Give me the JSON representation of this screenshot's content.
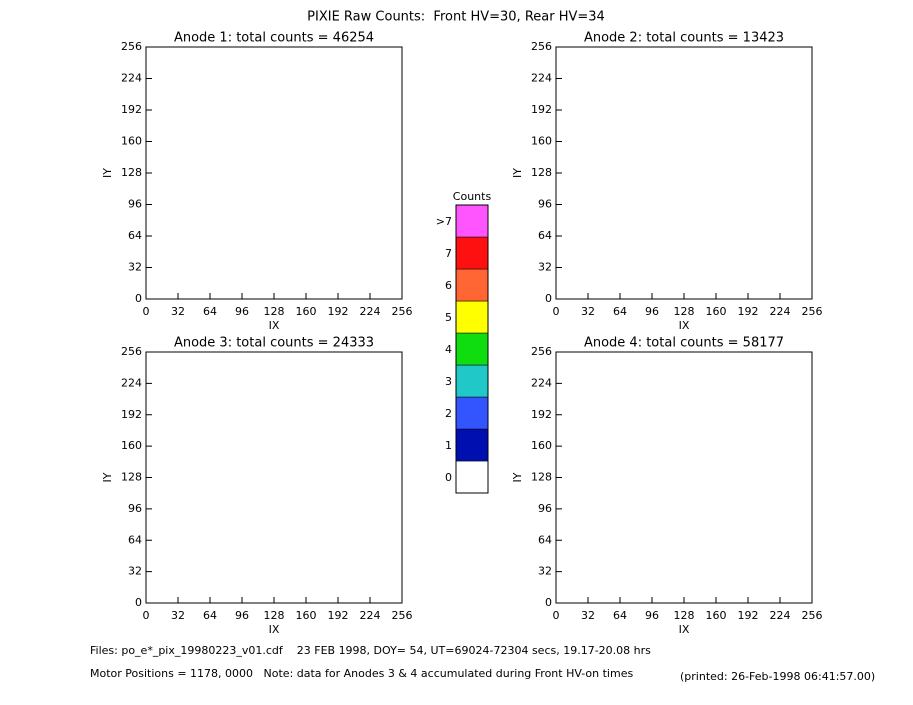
{
  "title": "PIXIE Raw Counts:  Front HV=30, Rear HV=34",
  "chart_data": [
    {
      "type": "heatmap",
      "title": "Anode 1: total counts = 46254",
      "x_label": "IX",
      "y_label": "IY",
      "xlim": [
        0,
        256
      ],
      "ylim": [
        0,
        256
      ],
      "xticks": [
        0,
        32,
        64,
        96,
        128,
        160,
        192,
        224,
        256
      ],
      "yticks": [
        0,
        32,
        64,
        96,
        128,
        160,
        192,
        224,
        256
      ]
    },
    {
      "type": "heatmap",
      "title": "Anode 2: total counts = 13423",
      "x_label": "IX",
      "y_label": "IY",
      "xlim": [
        0,
        256
      ],
      "ylim": [
        0,
        256
      ],
      "xticks": [
        0,
        32,
        64,
        96,
        128,
        160,
        192,
        224,
        256
      ],
      "yticks": [
        0,
        32,
        64,
        96,
        128,
        160,
        192,
        224,
        256
      ]
    },
    {
      "type": "heatmap",
      "title": "Anode 3: total counts = 24333",
      "x_label": "IX",
      "y_label": "IY",
      "xlim": [
        0,
        256
      ],
      "ylim": [
        0,
        256
      ],
      "xticks": [
        0,
        32,
        64,
        96,
        128,
        160,
        192,
        224,
        256
      ],
      "yticks": [
        0,
        32,
        64,
        96,
        128,
        160,
        192,
        224,
        256
      ]
    },
    {
      "type": "heatmap",
      "title": "Anode 4: total counts = 58177",
      "x_label": "IX",
      "y_label": "IY",
      "xlim": [
        0,
        256
      ],
      "ylim": [
        0,
        256
      ],
      "xticks": [
        0,
        32,
        64,
        96,
        128,
        160,
        192,
        224,
        256
      ],
      "yticks": [
        0,
        32,
        64,
        96,
        128,
        160,
        192,
        224,
        256
      ]
    }
  ],
  "colorbar": {
    "title": "Counts",
    "levels": [
      {
        "value": 0,
        "color": "#ffffff"
      },
      {
        "value": 1,
        "color": "#0010b0"
      },
      {
        "value": 2,
        "color": "#3355ff"
      },
      {
        "value": 3,
        "color": "#20c8c8"
      },
      {
        "value": 4,
        "color": "#10dd10"
      },
      {
        "value": 5,
        "color": "#ffff00"
      },
      {
        "value": 6,
        "color": "#ff6633"
      },
      {
        "value": 7,
        "color": "#ff1010"
      },
      {
        "label": ">7",
        "color": "#ff55ff"
      }
    ]
  },
  "footer": {
    "files": "Files: po_e*_pix_19980223_v01.cdf    23 FEB 1998, DOY= 54, UT=69024-72304 secs, 19.17-20.08 hrs",
    "motor": "Motor Positions = 1178, 0000   Note: data for Anodes 3 & 4 accumulated during Front HV-on times",
    "printed": "(printed: 26-Feb-1998 06:41:57.00)"
  }
}
